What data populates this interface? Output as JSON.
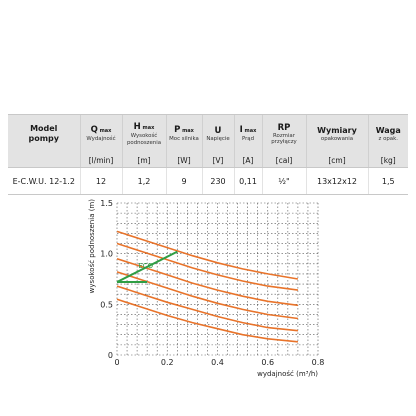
{
  "table": {
    "headers": [
      {
        "main": "Model\npompy",
        "sub": ""
      },
      {
        "main": "Q",
        "sup": "max",
        "sub": "Wydajność"
      },
      {
        "main": "H",
        "sup": "max",
        "sub": "Wysokość podnoszenia"
      },
      {
        "main": "P",
        "sup": "max",
        "sub": "Moc silnika"
      },
      {
        "main": "U",
        "sup": "",
        "sub": "Napięcie"
      },
      {
        "main": "I",
        "sup": "max",
        "sub": "Prąd"
      },
      {
        "main": "RP",
        "sup": "",
        "sub": "Rozmiar przyłączy"
      },
      {
        "main": "Wymiary",
        "sup": "",
        "sub": "opakowania"
      },
      {
        "main": "Waga",
        "sup": "",
        "sub": "z opak."
      }
    ],
    "units": [
      "",
      "[l/min]",
      "[m]",
      "[W]",
      "[V]",
      "[A]",
      "[cal]",
      "[cm]",
      "[kg]"
    ],
    "row": [
      "E-C.W.U. 12-1.2",
      "12",
      "1,2",
      "9",
      "230",
      "0,11",
      "½\"",
      "13x12x12",
      "1,5"
    ]
  },
  "chart_data": {
    "type": "line",
    "xlabel": "wydajność (m³/h)",
    "ylabel": "wysokość podnoszenia (m)",
    "xlim": [
      0,
      0.8
    ],
    "ylim": [
      0,
      1.5
    ],
    "xticks": [
      "0",
      "0.2",
      "0.4",
      "0.6",
      "0.8"
    ],
    "yticks": [
      "0",
      "0.5",
      "1.0",
      "1.5"
    ],
    "grid": true,
    "curve_color": "#e8732a",
    "eco_color": "#2e9e44",
    "curves": [
      {
        "x": [
          0,
          0.1,
          0.2,
          0.3,
          0.4,
          0.5,
          0.6,
          0.72
        ],
        "y": [
          1.22,
          1.14,
          1.06,
          0.98,
          0.91,
          0.85,
          0.8,
          0.75
        ]
      },
      {
        "x": [
          0,
          0.1,
          0.2,
          0.3,
          0.4,
          0.5,
          0.6,
          0.72
        ],
        "y": [
          1.1,
          1.02,
          0.94,
          0.86,
          0.79,
          0.73,
          0.68,
          0.64
        ]
      },
      {
        "x": [
          0,
          0.1,
          0.2,
          0.3,
          0.4,
          0.5,
          0.6,
          0.72
        ],
        "y": [
          0.95,
          0.87,
          0.79,
          0.71,
          0.64,
          0.58,
          0.53,
          0.49
        ]
      },
      {
        "x": [
          0,
          0.1,
          0.2,
          0.3,
          0.4,
          0.5,
          0.6,
          0.72
        ],
        "y": [
          0.82,
          0.74,
          0.66,
          0.58,
          0.51,
          0.45,
          0.4,
          0.36
        ]
      },
      {
        "x": [
          0,
          0.1,
          0.2,
          0.3,
          0.4,
          0.5,
          0.6,
          0.72
        ],
        "y": [
          0.68,
          0.6,
          0.52,
          0.45,
          0.38,
          0.32,
          0.27,
          0.24
        ]
      },
      {
        "x": [
          0,
          0.1,
          0.2,
          0.3,
          0.4,
          0.5,
          0.6,
          0.72
        ],
        "y": [
          0.55,
          0.47,
          0.39,
          0.32,
          0.26,
          0.2,
          0.16,
          0.13
        ]
      }
    ],
    "eco_line": {
      "x": [
        0,
        0.24
      ],
      "y": [
        0.72,
        1.02
      ]
    },
    "eco_horizontal": {
      "x": [
        0,
        0.12
      ],
      "y": [
        0.72,
        0.72
      ]
    },
    "eco_label": "ECO"
  }
}
